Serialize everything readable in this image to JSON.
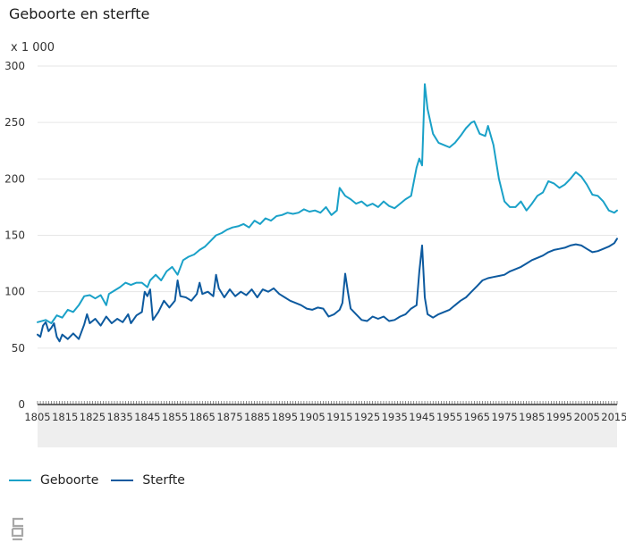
{
  "chart_data": {
    "type": "line",
    "title": "Geboorte en sterfte",
    "unit_label": "x 1 000",
    "xlim": [
      1805,
      2016
    ],
    "ylim": [
      0,
      300
    ],
    "yticks": [
      0,
      50,
      100,
      150,
      200,
      250,
      300
    ],
    "xticks": [
      "1805",
      "1815",
      "1825",
      "1835",
      "1845",
      "1855",
      "1865",
      "1875",
      "1885",
      "1895",
      "1905",
      "1915",
      "1925",
      "1935",
      "1945",
      "1955",
      "1965",
      "1975",
      "1985",
      "1995",
      "2005",
      "2015"
    ],
    "grid": "horizontal",
    "legend_position": "bottom-left",
    "series": [
      {
        "name": "Geboorte",
        "color": "#1aa1c8",
        "points": [
          [
            1805,
            73
          ],
          [
            1808,
            75
          ],
          [
            1810,
            72
          ],
          [
            1812,
            79
          ],
          [
            1814,
            77
          ],
          [
            1816,
            84
          ],
          [
            1818,
            82
          ],
          [
            1820,
            88
          ],
          [
            1822,
            96
          ],
          [
            1824,
            97
          ],
          [
            1826,
            94
          ],
          [
            1828,
            97
          ],
          [
            1830,
            88
          ],
          [
            1831,
            98
          ],
          [
            1833,
            101
          ],
          [
            1835,
            104
          ],
          [
            1837,
            108
          ],
          [
            1839,
            106
          ],
          [
            1841,
            108
          ],
          [
            1843,
            108
          ],
          [
            1845,
            104
          ],
          [
            1846,
            110
          ],
          [
            1848,
            115
          ],
          [
            1850,
            110
          ],
          [
            1852,
            118
          ],
          [
            1854,
            122
          ],
          [
            1856,
            115
          ],
          [
            1858,
            128
          ],
          [
            1860,
            131
          ],
          [
            1862,
            133
          ],
          [
            1864,
            137
          ],
          [
            1866,
            140
          ],
          [
            1868,
            145
          ],
          [
            1870,
            150
          ],
          [
            1872,
            152
          ],
          [
            1874,
            155
          ],
          [
            1876,
            157
          ],
          [
            1878,
            158
          ],
          [
            1880,
            160
          ],
          [
            1882,
            157
          ],
          [
            1884,
            163
          ],
          [
            1886,
            160
          ],
          [
            1888,
            165
          ],
          [
            1890,
            163
          ],
          [
            1892,
            167
          ],
          [
            1894,
            168
          ],
          [
            1896,
            170
          ],
          [
            1898,
            169
          ],
          [
            1900,
            170
          ],
          [
            1902,
            173
          ],
          [
            1904,
            171
          ],
          [
            1906,
            172
          ],
          [
            1908,
            170
          ],
          [
            1910,
            175
          ],
          [
            1912,
            168
          ],
          [
            1914,
            172
          ],
          [
            1915,
            192
          ],
          [
            1917,
            185
          ],
          [
            1919,
            182
          ],
          [
            1921,
            178
          ],
          [
            1923,
            180
          ],
          [
            1925,
            176
          ],
          [
            1927,
            178
          ],
          [
            1929,
            175
          ],
          [
            1931,
            180
          ],
          [
            1933,
            176
          ],
          [
            1935,
            174
          ],
          [
            1937,
            178
          ],
          [
            1939,
            182
          ],
          [
            1941,
            185
          ],
          [
            1943,
            210
          ],
          [
            1944,
            218
          ],
          [
            1945,
            212
          ],
          [
            1946,
            284
          ],
          [
            1947,
            262
          ],
          [
            1949,
            240
          ],
          [
            1951,
            232
          ],
          [
            1953,
            230
          ],
          [
            1955,
            228
          ],
          [
            1957,
            232
          ],
          [
            1959,
            238
          ],
          [
            1961,
            245
          ],
          [
            1963,
            250
          ],
          [
            1964,
            251
          ],
          [
            1966,
            240
          ],
          [
            1968,
            238
          ],
          [
            1969,
            247
          ],
          [
            1971,
            230
          ],
          [
            1973,
            200
          ],
          [
            1975,
            180
          ],
          [
            1977,
            175
          ],
          [
            1979,
            175
          ],
          [
            1981,
            180
          ],
          [
            1983,
            172
          ],
          [
            1985,
            178
          ],
          [
            1987,
            185
          ],
          [
            1989,
            188
          ],
          [
            1991,
            198
          ],
          [
            1993,
            196
          ],
          [
            1995,
            192
          ],
          [
            1997,
            195
          ],
          [
            1999,
            200
          ],
          [
            2001,
            206
          ],
          [
            2003,
            202
          ],
          [
            2005,
            195
          ],
          [
            2007,
            186
          ],
          [
            2009,
            185
          ],
          [
            2011,
            180
          ],
          [
            2013,
            172
          ],
          [
            2015,
            170
          ],
          [
            2016,
            172
          ]
        ]
      },
      {
        "name": "Sterfte",
        "color": "#0d5a9f",
        "points": [
          [
            1805,
            62
          ],
          [
            1806,
            60
          ],
          [
            1807,
            70
          ],
          [
            1808,
            73
          ],
          [
            1809,
            65
          ],
          [
            1810,
            68
          ],
          [
            1811,
            72
          ],
          [
            1812,
            60
          ],
          [
            1813,
            56
          ],
          [
            1814,
            62
          ],
          [
            1816,
            58
          ],
          [
            1818,
            63
          ],
          [
            1820,
            58
          ],
          [
            1822,
            71
          ],
          [
            1823,
            80
          ],
          [
            1824,
            72
          ],
          [
            1826,
            76
          ],
          [
            1828,
            70
          ],
          [
            1830,
            78
          ],
          [
            1832,
            72
          ],
          [
            1834,
            76
          ],
          [
            1836,
            73
          ],
          [
            1838,
            80
          ],
          [
            1839,
            72
          ],
          [
            1841,
            79
          ],
          [
            1843,
            82
          ],
          [
            1844,
            100
          ],
          [
            1845,
            96
          ],
          [
            1846,
            102
          ],
          [
            1847,
            75
          ],
          [
            1849,
            82
          ],
          [
            1851,
            92
          ],
          [
            1853,
            86
          ],
          [
            1855,
            92
          ],
          [
            1856,
            110
          ],
          [
            1857,
            96
          ],
          [
            1859,
            95
          ],
          [
            1861,
            92
          ],
          [
            1863,
            98
          ],
          [
            1864,
            108
          ],
          [
            1865,
            98
          ],
          [
            1867,
            100
          ],
          [
            1869,
            96
          ],
          [
            1870,
            115
          ],
          [
            1871,
            103
          ],
          [
            1873,
            95
          ],
          [
            1875,
            102
          ],
          [
            1877,
            96
          ],
          [
            1879,
            100
          ],
          [
            1881,
            97
          ],
          [
            1883,
            102
          ],
          [
            1885,
            95
          ],
          [
            1887,
            102
          ],
          [
            1889,
            100
          ],
          [
            1891,
            103
          ],
          [
            1893,
            98
          ],
          [
            1895,
            95
          ],
          [
            1897,
            92
          ],
          [
            1899,
            90
          ],
          [
            1901,
            88
          ],
          [
            1903,
            85
          ],
          [
            1905,
            84
          ],
          [
            1907,
            86
          ],
          [
            1909,
            85
          ],
          [
            1911,
            78
          ],
          [
            1913,
            80
          ],
          [
            1915,
            84
          ],
          [
            1916,
            90
          ],
          [
            1917,
            116
          ],
          [
            1918,
            100
          ],
          [
            1919,
            85
          ],
          [
            1921,
            80
          ],
          [
            1923,
            75
          ],
          [
            1925,
            74
          ],
          [
            1927,
            78
          ],
          [
            1929,
            76
          ],
          [
            1931,
            78
          ],
          [
            1933,
            74
          ],
          [
            1935,
            75
          ],
          [
            1937,
            78
          ],
          [
            1939,
            80
          ],
          [
            1941,
            85
          ],
          [
            1943,
            88
          ],
          [
            1944,
            118
          ],
          [
            1945,
            141
          ],
          [
            1946,
            95
          ],
          [
            1947,
            80
          ],
          [
            1949,
            77
          ],
          [
            1951,
            80
          ],
          [
            1953,
            82
          ],
          [
            1955,
            84
          ],
          [
            1957,
            88
          ],
          [
            1959,
            92
          ],
          [
            1961,
            95
          ],
          [
            1963,
            100
          ],
          [
            1965,
            105
          ],
          [
            1967,
            110
          ],
          [
            1969,
            112
          ],
          [
            1971,
            113
          ],
          [
            1973,
            114
          ],
          [
            1975,
            115
          ],
          [
            1977,
            118
          ],
          [
            1979,
            120
          ],
          [
            1981,
            122
          ],
          [
            1983,
            125
          ],
          [
            1985,
            128
          ],
          [
            1987,
            130
          ],
          [
            1989,
            132
          ],
          [
            1991,
            135
          ],
          [
            1993,
            137
          ],
          [
            1995,
            138
          ],
          [
            1997,
            139
          ],
          [
            1999,
            141
          ],
          [
            2001,
            142
          ],
          [
            2003,
            141
          ],
          [
            2005,
            138
          ],
          [
            2007,
            135
          ],
          [
            2009,
            136
          ],
          [
            2011,
            138
          ],
          [
            2013,
            140
          ],
          [
            2015,
            143
          ],
          [
            2016,
            147
          ]
        ]
      }
    ]
  },
  "logo": {
    "text": "cbs"
  }
}
